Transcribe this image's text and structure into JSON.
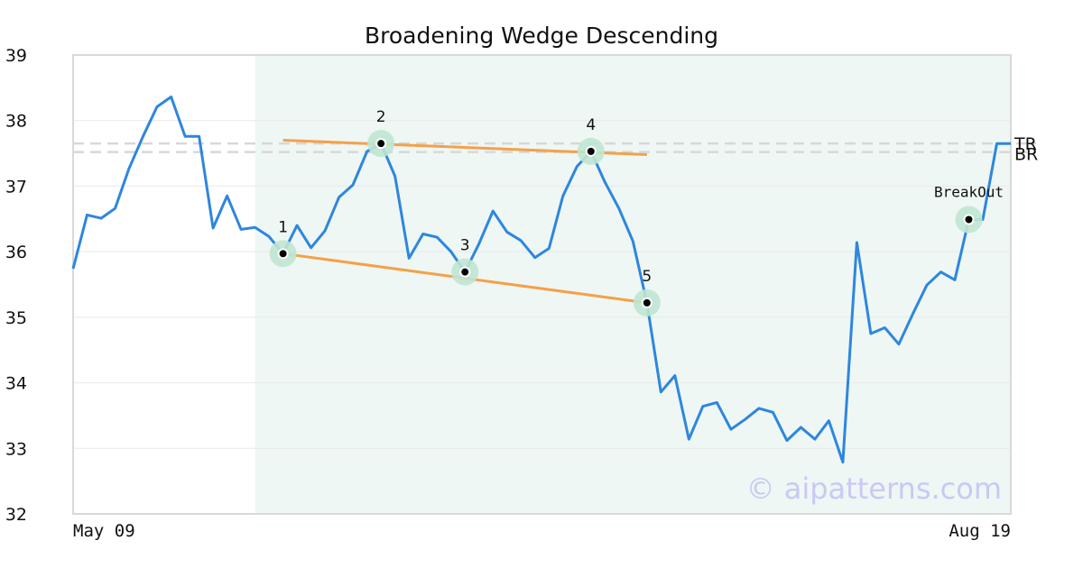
{
  "chart_data": {
    "type": "line",
    "title": "Broadening Wedge Descending",
    "x_tick_labels": [
      "May 09",
      "Aug 19"
    ],
    "ylim": [
      32,
      39
    ],
    "y_ticks": [
      32,
      33,
      34,
      35,
      36,
      37,
      38,
      39
    ],
    "grid": "horizontal",
    "colors": {
      "line": "#2e86de",
      "trendline": "#f5a04a",
      "highlight_band": "#eef7f3",
      "marker_halo": "#bfe6d2",
      "reference": "#d8d8d8"
    },
    "series": [
      {
        "values": [
          35.74,
          36.56,
          36.51,
          36.66,
          37.27,
          37.76,
          38.21,
          38.36,
          37.76,
          37.76,
          36.36,
          36.85,
          36.34,
          36.37,
          36.23,
          35.97,
          36.4,
          36.06,
          36.32,
          36.83,
          37.02,
          37.53,
          37.65,
          37.15,
          35.9,
          36.27,
          36.22,
          36.0,
          35.69,
          36.12,
          36.62,
          36.3,
          36.17,
          35.91,
          36.05,
          36.85,
          37.3,
          37.53,
          37.06,
          36.66,
          36.16,
          35.22,
          33.86,
          34.11,
          33.14,
          33.64,
          33.7,
          33.29,
          33.44,
          33.61,
          33.55,
          33.12,
          33.32,
          33.14,
          33.42,
          32.79,
          36.14,
          34.75,
          34.84,
          34.59,
          35.05,
          35.49,
          35.69,
          35.57,
          36.49,
          36.49,
          37.65,
          37.65
        ]
      }
    ],
    "highlight_range_index": [
      13,
      67
    ],
    "trendlines": [
      {
        "from": [
          15,
          37.7
        ],
        "to": [
          41,
          37.48
        ]
      },
      {
        "from": [
          15,
          35.97
        ],
        "to": [
          41,
          35.22
        ]
      }
    ],
    "pattern_points": [
      {
        "label": "1",
        "index": 15,
        "value": 35.97
      },
      {
        "label": "2",
        "index": 22,
        "value": 37.65
      },
      {
        "label": "3",
        "index": 28,
        "value": 35.69
      },
      {
        "label": "4",
        "index": 37,
        "value": 37.53
      },
      {
        "label": "5",
        "index": 41,
        "value": 35.22
      }
    ],
    "breakout": {
      "label": "BreakOut",
      "index": 64,
      "value": 36.49
    },
    "reference_lines": [
      {
        "label": "TR",
        "value": 37.65
      },
      {
        "label": "BR",
        "value": 37.52
      }
    ]
  },
  "watermark": "© aipatterns.com"
}
